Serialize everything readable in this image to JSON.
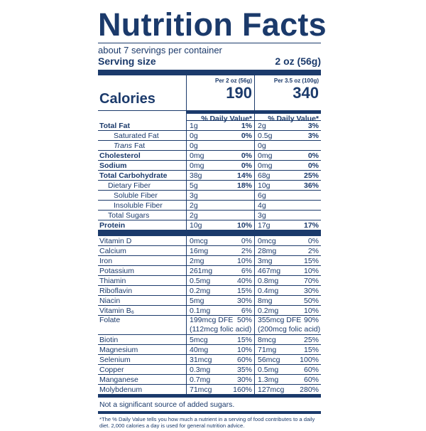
{
  "title": "Nutrition Facts",
  "servings_per_container": "about 7 servings per container",
  "serving_size": {
    "label": "Serving size",
    "value": "2 oz (56g)"
  },
  "columns": [
    {
      "header": "Per 2 oz (56g)",
      "calories": "190"
    },
    {
      "header": "Per 3.5 oz (100g)",
      "calories": "340"
    }
  ],
  "calories_label": "Calories",
  "dv_header": "% Daily Value*",
  "macros": [
    {
      "name": "Total Fat",
      "bold": true,
      "indent": 0,
      "a": "1g",
      "a_dv": "1%",
      "b": "2g",
      "b_dv": "3%"
    },
    {
      "name": "Saturated Fat",
      "bold": false,
      "indent": 2,
      "a": "0g",
      "a_dv": "0%",
      "b": "0.5g",
      "b_dv": "3%"
    },
    {
      "name": "Trans Fat",
      "bold": false,
      "indent": 2,
      "italic_prefix": "Trans",
      "a": "0g",
      "a_dv": "",
      "b": "0g",
      "b_dv": ""
    },
    {
      "name": "Cholesterol",
      "bold": true,
      "indent": 0,
      "a": "0mg",
      "a_dv": "0%",
      "b": "0mg",
      "b_dv": "0%"
    },
    {
      "name": "Sodium",
      "bold": true,
      "indent": 0,
      "a": "0mg",
      "a_dv": "0%",
      "b": "0mg",
      "b_dv": "0%"
    },
    {
      "name": "Total Carbohydrate",
      "bold": true,
      "indent": 0,
      "a": "38g",
      "a_dv": "14%",
      "b": "68g",
      "b_dv": "25%"
    },
    {
      "name": "Dietary Fiber",
      "bold": false,
      "indent": 1,
      "a": "5g",
      "a_dv": "18%",
      "b": "10g",
      "b_dv": "36%"
    },
    {
      "name": "Soluble Fiber",
      "bold": false,
      "indent": 2,
      "a": "3g",
      "a_dv": "",
      "b": "6g",
      "b_dv": ""
    },
    {
      "name": "Insoluble Fiber",
      "bold": false,
      "indent": 2,
      "a": "2g",
      "a_dv": "",
      "b": "4g",
      "b_dv": ""
    },
    {
      "name": "Total Sugars",
      "bold": false,
      "indent": 1,
      "a": "2g",
      "a_dv": "",
      "b": "3g",
      "b_dv": ""
    },
    {
      "name": "Protein",
      "bold": true,
      "indent": 0,
      "a": "10g",
      "a_dv": "10%",
      "b": "17g",
      "b_dv": "17%"
    }
  ],
  "micros": [
    {
      "name": "Vitamin D",
      "a": "0mcg",
      "a_dv": "0%",
      "b": "0mcg",
      "b_dv": "0%"
    },
    {
      "name": "Calcium",
      "a": "16mg",
      "a_dv": "2%",
      "b": "28mg",
      "b_dv": "2%"
    },
    {
      "name": "Iron",
      "a": "2mg",
      "a_dv": "10%",
      "b": "3mg",
      "b_dv": "15%"
    },
    {
      "name": "Potassium",
      "a": "261mg",
      "a_dv": "6%",
      "b": "467mg",
      "b_dv": "10%"
    },
    {
      "name": "Thiamin",
      "a": "0.5mg",
      "a_dv": "40%",
      "b": "0.8mg",
      "b_dv": "70%"
    },
    {
      "name": "Riboflavin",
      "a": "0.2mg",
      "a_dv": "15%",
      "b": "0.4mg",
      "b_dv": "30%"
    },
    {
      "name": "Niacin",
      "a": "5mg",
      "a_dv": "30%",
      "b": "8mg",
      "b_dv": "50%"
    },
    {
      "name": "Vitamin B₆",
      "a": "0.1mg",
      "a_dv": "6%",
      "b": "0.2mg",
      "b_dv": "10%"
    },
    {
      "name": "Folate",
      "a": "199mcg DFE",
      "a_dv": "50%",
      "a_sub": "(112mcg folic acid)",
      "b": "355mcg DFE",
      "b_dv": "90%",
      "b_sub": "(200mcg folic acid)"
    },
    {
      "name": "Biotin",
      "a": "5mcg",
      "a_dv": "15%",
      "b": "8mcg",
      "b_dv": "25%"
    },
    {
      "name": "Magnesium",
      "a": "40mg",
      "a_dv": "10%",
      "b": "71mg",
      "b_dv": "15%"
    },
    {
      "name": "Selenium",
      "a": "31mcg",
      "a_dv": "60%",
      "b": "56mcg",
      "b_dv": "100%"
    },
    {
      "name": "Copper",
      "a": "0.3mg",
      "a_dv": "35%",
      "b": "0.5mg",
      "b_dv": "60%"
    },
    {
      "name": "Manganese",
      "a": "0.7mg",
      "a_dv": "30%",
      "b": "1.3mg",
      "b_dv": "60%"
    },
    {
      "name": "Molybdenum",
      "a": "71mcg",
      "a_dv": "160%",
      "b": "127mcg",
      "b_dv": "280%"
    }
  ],
  "sugar_note": "Not a significant source of added sugars.",
  "footnote": "*The % Daily Value tells you how much a nutrient in a serving of food contributes to a daily diet. 2,000 calories a day is used for general nutrition advice.",
  "colors": {
    "ink": "#1b3a6b",
    "background": "#ffffff"
  }
}
